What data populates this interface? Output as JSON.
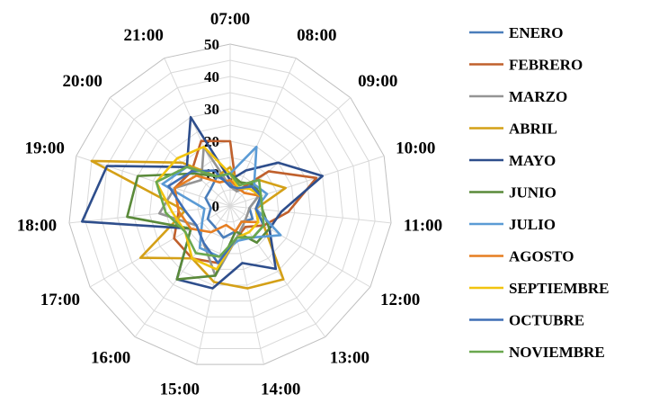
{
  "chart_data": {
    "type": "radar",
    "categories": [
      "07:00",
      "08:00",
      "09:00",
      "10:00",
      "11:00",
      "12:00",
      "13:00",
      "14:00",
      "15:00",
      "16:00",
      "17:00",
      "18:00",
      "19:00",
      "20:00",
      "21:00"
    ],
    "rlim": [
      0,
      50
    ],
    "ticks": [
      0,
      10,
      20,
      30,
      40,
      50
    ],
    "grid": true,
    "legend_position": "right",
    "series": [
      {
        "name": "ENERO",
        "color": "#4a7ebb",
        "values": [
          7,
          5,
          10,
          9,
          6,
          8,
          6,
          8,
          10,
          8,
          8,
          6,
          8,
          8,
          10
        ]
      },
      {
        "name": "FEBRERO",
        "color": "#c0602c",
        "values": [
          20,
          5,
          16,
          28,
          18,
          12,
          8,
          10,
          18,
          20,
          20,
          16,
          18,
          16,
          22
        ]
      },
      {
        "name": "MARZO",
        "color": "#949494",
        "values": [
          6,
          5,
          9,
          9,
          6,
          6,
          7,
          10,
          22,
          14,
          12,
          22,
          18,
          12,
          20
        ]
      },
      {
        "name": "ABRIL",
        "color": "#d4a017",
        "values": [
          12,
          7,
          12,
          18,
          8,
          12,
          28,
          26,
          24,
          20,
          32,
          14,
          45,
          20,
          10
        ]
      },
      {
        "name": "MAYO",
        "color": "#2e4e8c",
        "values": [
          8,
          12,
          20,
          30,
          16,
          14,
          24,
          18,
          26,
          28,
          14,
          46,
          40,
          18,
          30
        ]
      },
      {
        "name": "JUNIO",
        "color": "#5a8a3a",
        "values": [
          10,
          8,
          10,
          10,
          10,
          14,
          14,
          8,
          22,
          28,
          14,
          32,
          30,
          15,
          10
        ]
      },
      {
        "name": "JULIO",
        "color": "#5b9bd5",
        "values": [
          10,
          20,
          10,
          12,
          8,
          18,
          12,
          11,
          16,
          16,
          10,
          8,
          22,
          18,
          10
        ]
      },
      {
        "name": "AGOSTO",
        "color": "#e67e22",
        "values": [
          8,
          6,
          6,
          10,
          8,
          10,
          6,
          8,
          6,
          10,
          14,
          16,
          18,
          14,
          8
        ]
      },
      {
        "name": "SEPTIEMBRE",
        "color": "#f1c40f",
        "values": [
          10,
          6,
          8,
          10,
          8,
          10,
          10,
          10,
          20,
          20,
          16,
          18,
          24,
          22,
          20
        ]
      },
      {
        "name": "OCTUBRE",
        "color": "#3f6fb5",
        "values": [
          6,
          6,
          9,
          10,
          8,
          12,
          12,
          10,
          18,
          14,
          12,
          14,
          20,
          16,
          12
        ]
      },
      {
        "name": "NOVIEMBRE",
        "color": "#6aa84f",
        "values": [
          10,
          7,
          12,
          10,
          10,
          12,
          12,
          10,
          16,
          18,
          16,
          20,
          24,
          18,
          10
        ]
      }
    ]
  }
}
